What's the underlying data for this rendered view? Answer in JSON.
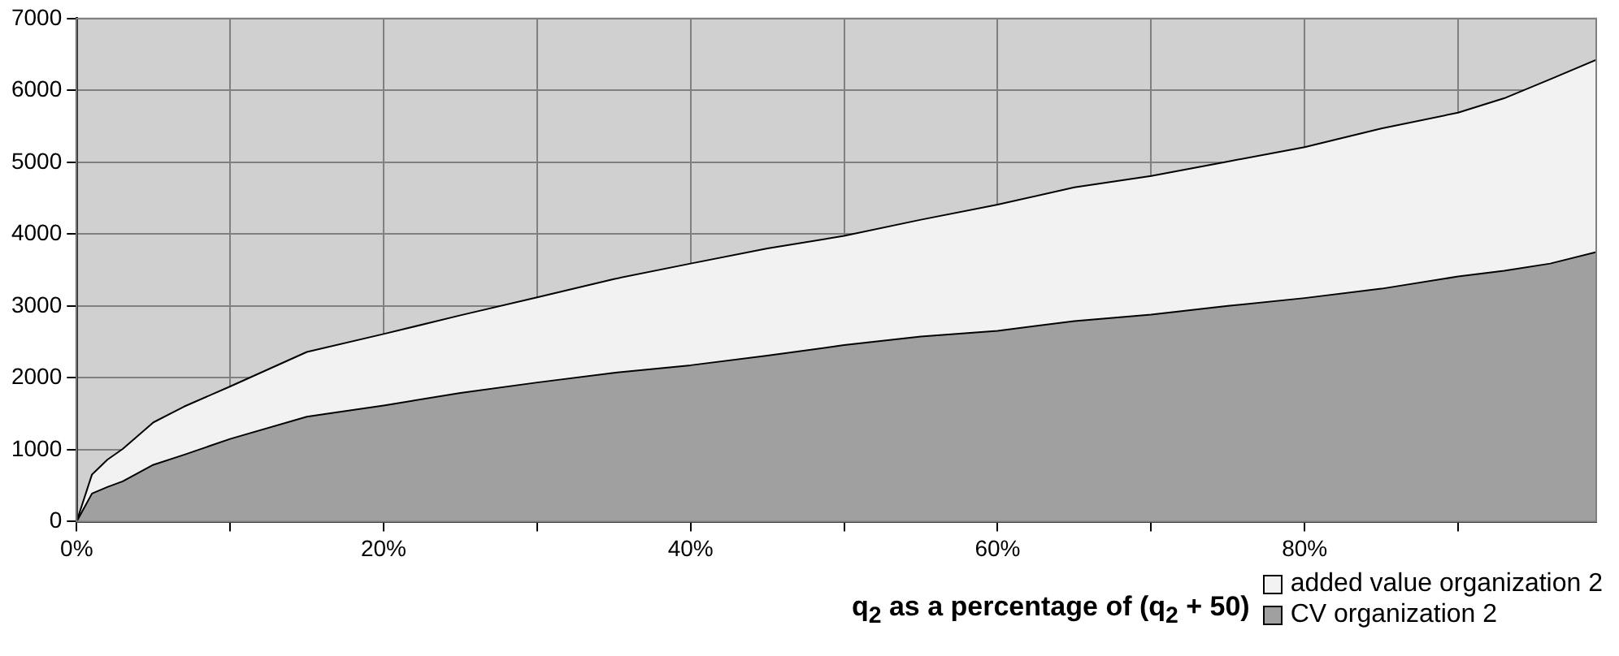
{
  "chart_data": {
    "type": "area",
    "stacked": true,
    "xlabel": "q$_{2}$ as a percentage of (q$_{2}$ + 50)",
    "x": [
      0,
      1,
      2,
      3,
      5,
      7,
      10,
      15,
      20,
      25,
      30,
      35,
      40,
      45,
      50,
      55,
      60,
      65,
      70,
      75,
      80,
      85,
      90,
      93,
      96,
      99
    ],
    "series": [
      {
        "name": "CV organization 2",
        "color": "#a0a0a0",
        "values": [
          0,
          390,
          480,
          560,
          790,
          930,
          1150,
          1460,
          1615,
          1790,
          1935,
          2070,
          2175,
          2310,
          2455,
          2575,
          2655,
          2790,
          2880,
          3000,
          3110,
          3240,
          3410,
          3490,
          3590,
          3750
        ]
      },
      {
        "name": "added value organization 2",
        "color": "#f2f2f2",
        "values": [
          0,
          265,
          380,
          450,
          590,
          670,
          730,
          900,
          995,
          1080,
          1185,
          1305,
          1415,
          1490,
          1520,
          1625,
          1755,
          1860,
          1930,
          2010,
          2100,
          2230,
          2280,
          2400,
          2565,
          2675
        ]
      }
    ],
    "xlim": [
      0,
      99
    ],
    "xticks": [
      {
        "value": 0,
        "label": "0%"
      },
      {
        "value": 10,
        "label": null
      },
      {
        "value": 20,
        "label": "20%"
      },
      {
        "value": 30,
        "label": null
      },
      {
        "value": 40,
        "label": "40%"
      },
      {
        "value": 50,
        "label": null
      },
      {
        "value": 60,
        "label": "60%"
      },
      {
        "value": 70,
        "label": null
      },
      {
        "value": 80,
        "label": "80%"
      },
      {
        "value": 90,
        "label": null
      }
    ],
    "ylim": [
      0,
      7000
    ],
    "yticks": [
      0,
      1000,
      2000,
      3000,
      4000,
      5000,
      6000,
      7000
    ],
    "grid": true,
    "legend": "bottom right",
    "marker": "none",
    "line_style": "solid"
  }
}
